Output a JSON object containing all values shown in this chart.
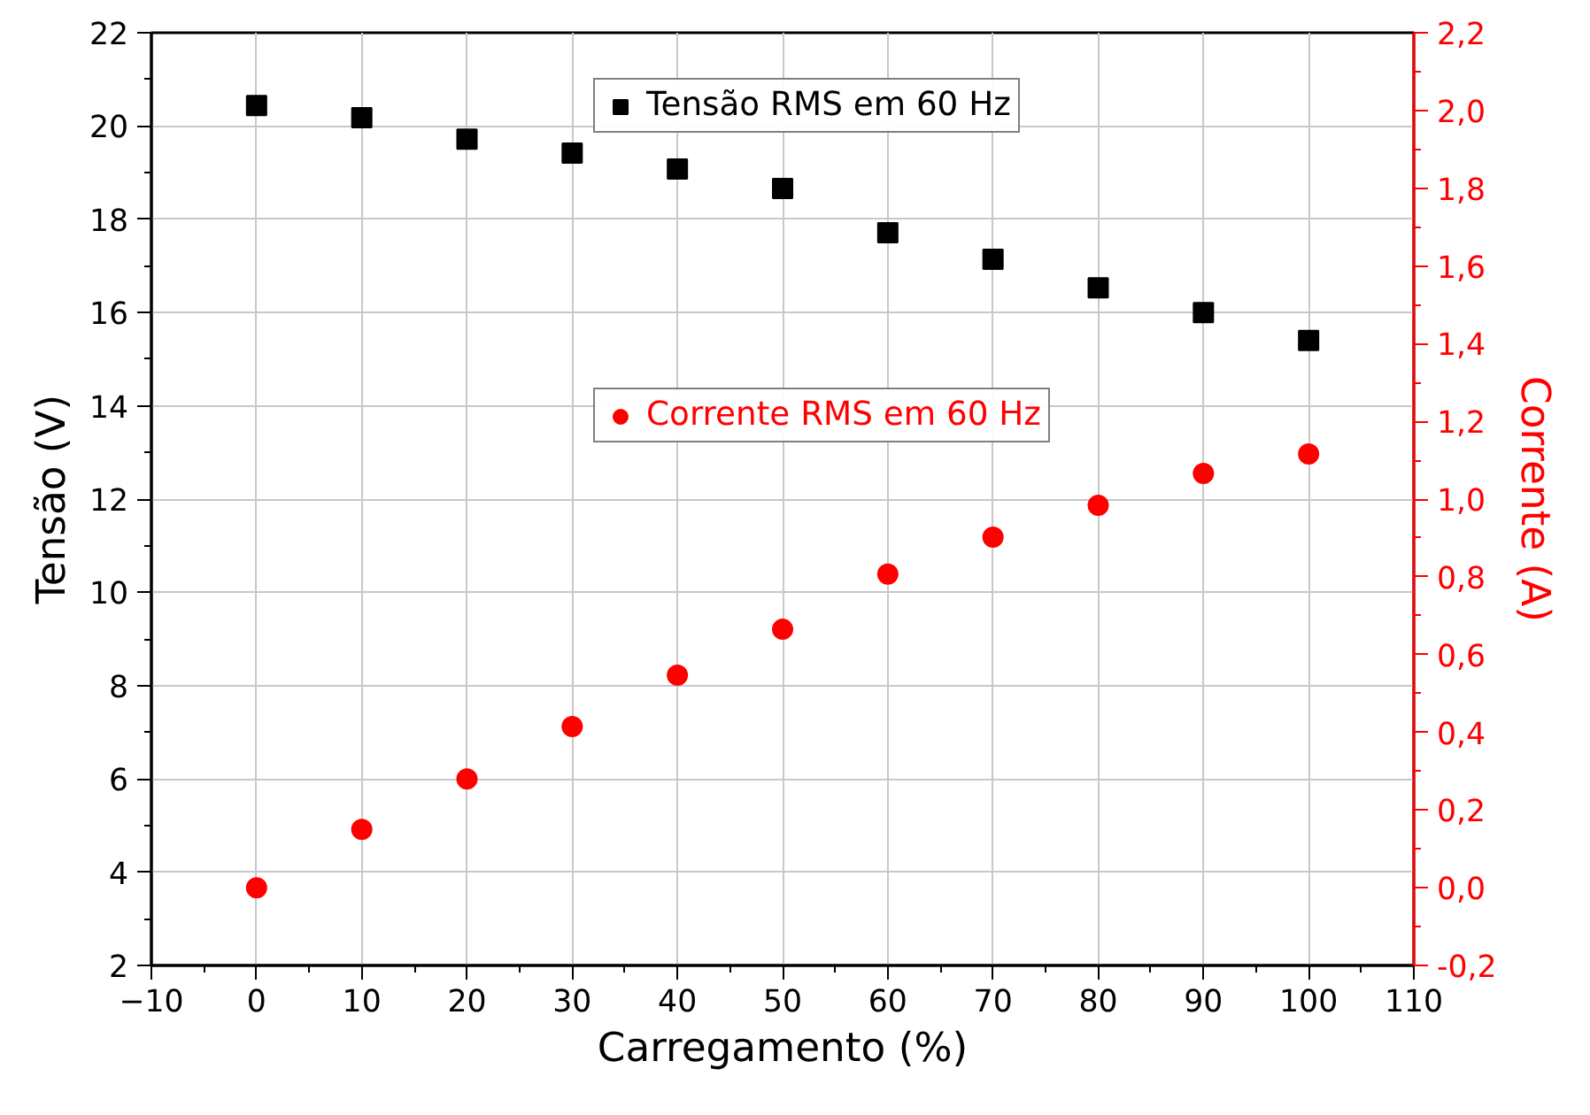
{
  "chart_data": {
    "type": "scatter",
    "xlabel": "Carregamento (%)",
    "ylabel": "Tensão (V)",
    "y2label": "Corrente (A)",
    "x": [
      0,
      10,
      20,
      30,
      40,
      50,
      60,
      70,
      80,
      90,
      100
    ],
    "series": [
      {
        "name": "Tensão RMS em 60 Hz",
        "color": "#000000",
        "marker": "square",
        "values": [
          20.44,
          20.18,
          19.72,
          19.42,
          19.08,
          18.66,
          17.71,
          17.14,
          16.53,
          16.0,
          15.4
        ]
      },
      {
        "name": "Corrente RMS em 60 Hz",
        "color": "#ff0000",
        "marker": "circle",
        "axis": "y2",
        "values": [
          0.0,
          0.15,
          0.28,
          0.415,
          0.547,
          0.665,
          0.807,
          0.902,
          0.984,
          1.066,
          1.116
        ]
      }
    ],
    "xlim": [
      -10,
      110
    ],
    "xticks": [
      -10,
      0,
      10,
      20,
      30,
      40,
      50,
      60,
      70,
      80,
      90,
      100,
      110
    ],
    "ylim": [
      2,
      22
    ],
    "yticks": [
      2,
      4,
      6,
      8,
      10,
      12,
      14,
      16,
      18,
      20,
      22
    ],
    "y2lim": [
      -0.2,
      2.2
    ],
    "y2ticks": [
      {
        "value": -0.2,
        "label": "-0,2"
      },
      {
        "value": 0.0,
        "label": "0,0"
      },
      {
        "value": 0.2,
        "label": "0,2"
      },
      {
        "value": 0.4,
        "label": "0,4"
      },
      {
        "value": 0.6,
        "label": "0,6"
      },
      {
        "value": 0.8,
        "label": "0,8"
      },
      {
        "value": 1.0,
        "label": "1,0"
      },
      {
        "value": 1.2,
        "label": "1,2"
      },
      {
        "value": 1.4,
        "label": "1,4"
      },
      {
        "value": 1.6,
        "label": "1,6"
      },
      {
        "value": 1.8,
        "label": "1,8"
      },
      {
        "value": 2.0,
        "label": "2,0"
      },
      {
        "value": 2.2,
        "label": "2,2"
      }
    ],
    "grid": true,
    "legend": "top"
  }
}
